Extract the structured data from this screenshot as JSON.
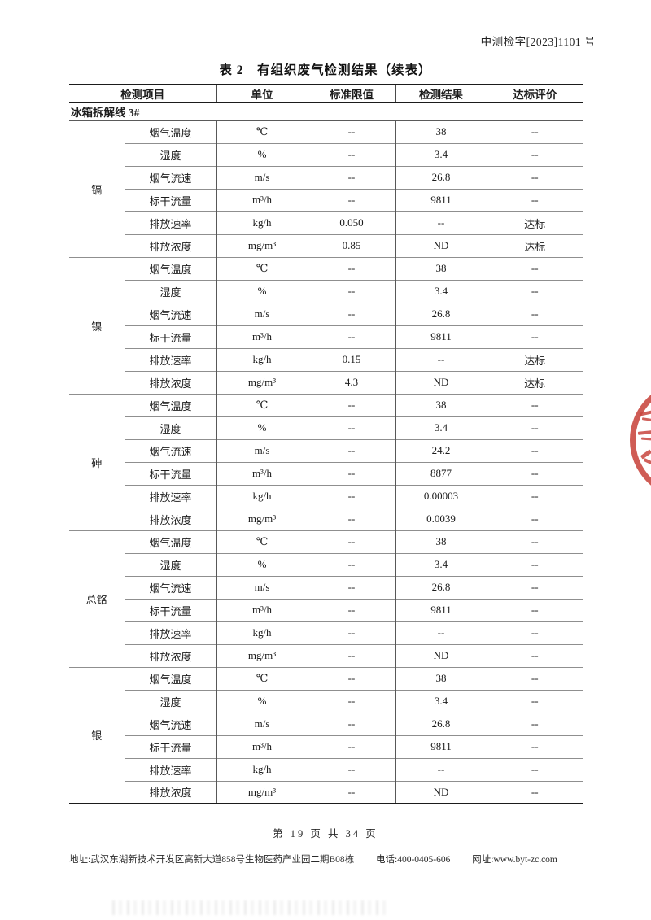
{
  "page": {
    "ref_number": "中测检字[2023]1101 号",
    "footer": {
      "page_info": "第 19 页 共 34 页",
      "address": "地址:武汉东湖新技术开发区高新大道858号生物医药产业园二期B08栋",
      "phone": "电话:400-0405-606",
      "website": "网址:www.byt-zc.com"
    }
  },
  "table": {
    "title": "表 2　有组织废气检测结果（续表）",
    "headers": [
      "检测项目",
      "单位",
      "标准限值",
      "检测结果",
      "达标评价"
    ],
    "section_label": "冰箱拆解线 3#",
    "groups": [
      {
        "name": "镉",
        "rows": [
          [
            "烟气温度",
            "℃",
            "--",
            "38",
            "--"
          ],
          [
            "湿度",
            "%",
            "--",
            "3.4",
            "--"
          ],
          [
            "烟气流速",
            "m/s",
            "--",
            "26.8",
            "--"
          ],
          [
            "标干流量",
            "m³/h",
            "--",
            "9811",
            "--"
          ],
          [
            "排放速率",
            "kg/h",
            "0.050",
            "--",
            "达标"
          ],
          [
            "排放浓度",
            "mg/m³",
            "0.85",
            "ND",
            "达标"
          ]
        ]
      },
      {
        "name": "镍",
        "rows": [
          [
            "烟气温度",
            "℃",
            "--",
            "38",
            "--"
          ],
          [
            "湿度",
            "%",
            "--",
            "3.4",
            "--"
          ],
          [
            "烟气流速",
            "m/s",
            "--",
            "26.8",
            "--"
          ],
          [
            "标干流量",
            "m³/h",
            "--",
            "9811",
            "--"
          ],
          [
            "排放速率",
            "kg/h",
            "0.15",
            "--",
            "达标"
          ],
          [
            "排放浓度",
            "mg/m³",
            "4.3",
            "ND",
            "达标"
          ]
        ]
      },
      {
        "name": "砷",
        "rows": [
          [
            "烟气温度",
            "℃",
            "--",
            "38",
            "--"
          ],
          [
            "湿度",
            "%",
            "--",
            "3.4",
            "--"
          ],
          [
            "烟气流速",
            "m/s",
            "--",
            "24.2",
            "--"
          ],
          [
            "标干流量",
            "m³/h",
            "--",
            "8877",
            "--"
          ],
          [
            "排放速率",
            "kg/h",
            "--",
            "0.00003",
            "--"
          ],
          [
            "排放浓度",
            "mg/m³",
            "--",
            "0.0039",
            "--"
          ]
        ]
      },
      {
        "name": "总铬",
        "rows": [
          [
            "烟气温度",
            "℃",
            "--",
            "38",
            "--"
          ],
          [
            "湿度",
            "%",
            "--",
            "3.4",
            "--"
          ],
          [
            "烟气流速",
            "m/s",
            "--",
            "26.8",
            "--"
          ],
          [
            "标干流量",
            "m³/h",
            "--",
            "9811",
            "--"
          ],
          [
            "排放速率",
            "kg/h",
            "--",
            "--",
            "--"
          ],
          [
            "排放浓度",
            "mg/m³",
            "--",
            "ND",
            "--"
          ]
        ]
      },
      {
        "name": "银",
        "rows": [
          [
            "烟气温度",
            "℃",
            "--",
            "38",
            "--"
          ],
          [
            "湿度",
            "%",
            "--",
            "3.4",
            "--"
          ],
          [
            "烟气流速",
            "m/s",
            "--",
            "26.8",
            "--"
          ],
          [
            "标干流量",
            "m³/h",
            "--",
            "9811",
            "--"
          ],
          [
            "排放速率",
            "kg/h",
            "--",
            "--",
            "--"
          ],
          [
            "排放浓度",
            "mg/m³",
            "--",
            "ND",
            "--"
          ]
        ]
      }
    ]
  },
  "seal": {
    "color": "#c8453e"
  }
}
